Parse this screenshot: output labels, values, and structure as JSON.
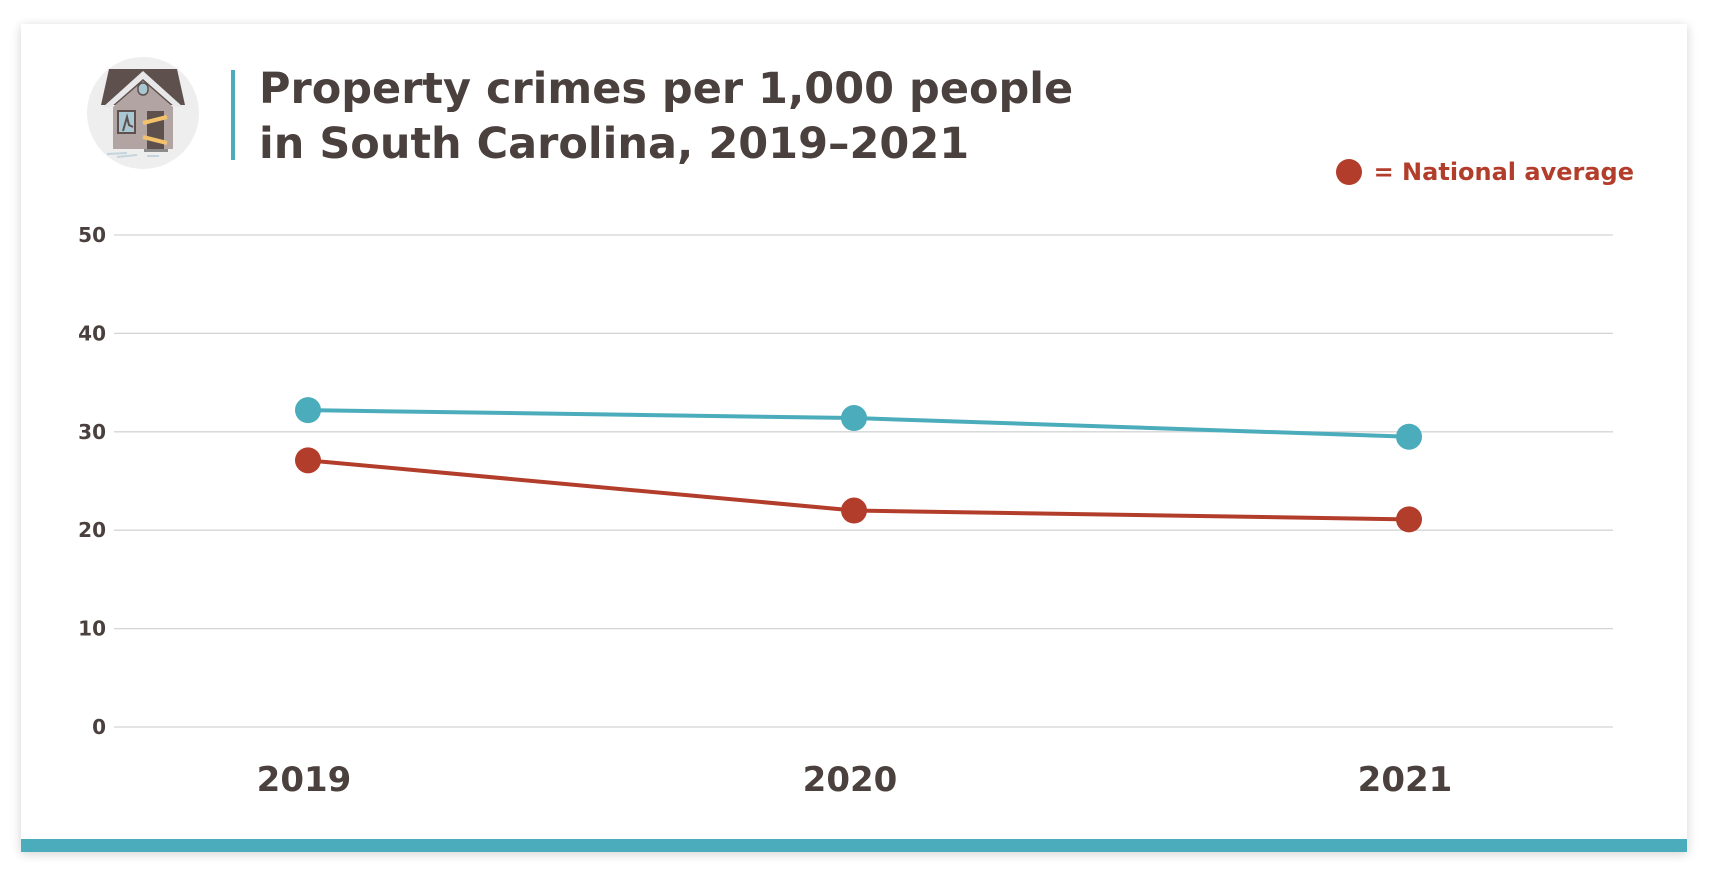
{
  "title_line1": "Property crimes per 1,000 people",
  "title_line2": "in South Carolina, 2019–2021",
  "legend_label": "= National average",
  "colors": {
    "south_carolina": "#4bacbb",
    "national": "#b33d2b",
    "text": "#4a403d",
    "grid": "#d4d4d4"
  },
  "icon": "boarded-up-house-icon",
  "chart_data": {
    "type": "line",
    "categories": [
      "2019",
      "2020",
      "2021"
    ],
    "ylim": [
      0,
      50
    ],
    "yticks": [
      "0",
      "10",
      "20",
      "30",
      "40",
      "50"
    ],
    "grid": true,
    "legend_placement": "top-right",
    "series": [
      {
        "key": "south_carolina",
        "values": [
          32.2,
          31.4,
          29.5
        ],
        "color": "#4bacbb"
      },
      {
        "key": "national",
        "name": "National average",
        "values": [
          27.1,
          22.0,
          21.1
        ],
        "color": "#b33d2b"
      }
    ]
  }
}
